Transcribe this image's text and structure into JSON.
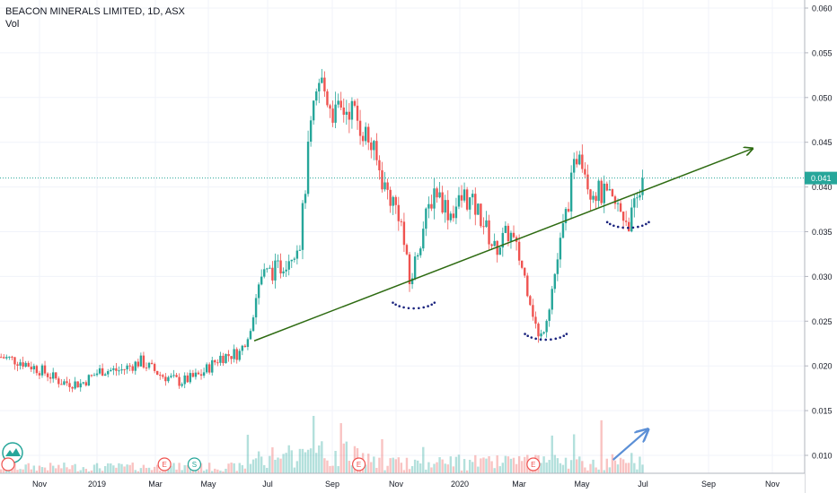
{
  "header": {
    "title": "BEACON MINERALS LIMITED, 1D, ASX",
    "volume_label": "Vol"
  },
  "price_tag": "0.041",
  "colors": {
    "up": "#26a69a",
    "down": "#ef5350",
    "trendline": "#2e6b12",
    "dots": "#1a237e",
    "arrow_volume": "#5b8fd6",
    "last_price_line": "#26a69a"
  },
  "chart_data": {
    "type": "candlestick",
    "title": "BEACON MINERALS LIMITED, 1D, ASX",
    "y_ticks": [
      "0.060",
      "0.055",
      "0.050",
      "0.045",
      "0.040",
      "0.035",
      "0.030",
      "0.025",
      "0.020",
      "0.015",
      "0.010"
    ],
    "ylim": [
      0.007,
      0.061
    ],
    "x_ticks": [
      "Nov",
      "2019",
      "Mar",
      "May",
      "Jul",
      "Sep",
      "Nov",
      "2020",
      "Mar",
      "May",
      "Jul",
      "Sep",
      "Nov"
    ],
    "last_price": 0.041,
    "grid": true,
    "price_path": [
      {
        "t": 0,
        "p": 0.021
      },
      {
        "t": 4,
        "p": 0.0205
      },
      {
        "t": 8,
        "p": 0.0195
      },
      {
        "t": 12,
        "p": 0.0182
      },
      {
        "t": 16,
        "p": 0.018
      },
      {
        "t": 20,
        "p": 0.0195
      },
      {
        "t": 24,
        "p": 0.0195
      },
      {
        "t": 28,
        "p": 0.0205
      },
      {
        "t": 32,
        "p": 0.019
      },
      {
        "t": 36,
        "p": 0.0182
      },
      {
        "t": 40,
        "p": 0.019
      },
      {
        "t": 44,
        "p": 0.021
      },
      {
        "t": 48,
        "p": 0.0215
      },
      {
        "t": 50,
        "p": 0.0245
      },
      {
        "t": 52,
        "p": 0.03
      },
      {
        "t": 56,
        "p": 0.031
      },
      {
        "t": 60,
        "p": 0.034
      },
      {
        "t": 62,
        "p": 0.046
      },
      {
        "t": 64,
        "p": 0.052
      },
      {
        "t": 67,
        "p": 0.048
      },
      {
        "t": 70,
        "p": 0.049
      },
      {
        "t": 74,
        "p": 0.045
      },
      {
        "t": 77,
        "p": 0.04
      },
      {
        "t": 80,
        "p": 0.037
      },
      {
        "t": 82,
        "p": 0.029
      },
      {
        "t": 84,
        "p": 0.034
      },
      {
        "t": 87,
        "p": 0.04
      },
      {
        "t": 90,
        "p": 0.037
      },
      {
        "t": 93,
        "p": 0.039
      },
      {
        "t": 96,
        "p": 0.037
      },
      {
        "t": 99,
        "p": 0.033
      },
      {
        "t": 102,
        "p": 0.035
      },
      {
        "t": 104,
        "p": 0.032
      },
      {
        "t": 106,
        "p": 0.028
      },
      {
        "t": 108,
        "p": 0.0225
      },
      {
        "t": 110,
        "p": 0.027
      },
      {
        "t": 113,
        "p": 0.036
      },
      {
        "t": 116,
        "p": 0.045
      },
      {
        "t": 118,
        "p": 0.04
      },
      {
        "t": 121,
        "p": 0.039
      },
      {
        "t": 124,
        "p": 0.0375
      },
      {
        "t": 126,
        "p": 0.036
      },
      {
        "t": 128,
        "p": 0.039
      },
      {
        "t": 129,
        "p": 0.042
      }
    ],
    "annotations": [
      {
        "type": "trendline",
        "from": {
          "t": 51,
          "p": 0.0228
        },
        "to": {
          "t": 151,
          "p": 0.0443
        }
      },
      {
        "type": "volume-arrow",
        "from": {
          "t": 123,
          "v": 0.0095
        },
        "to": {
          "t": 130,
          "v": 0.0129
        }
      },
      {
        "type": "dotted-arc",
        "t": 83,
        "p": 0.027
      },
      {
        "type": "dotted-arc",
        "t": 109.5,
        "p": 0.0235
      },
      {
        "type": "dotted-arc",
        "t": 126,
        "p": 0.036
      }
    ],
    "event_markers": [
      {
        "label": "E",
        "t": 33
      },
      {
        "label": "S",
        "t": 39
      },
      {
        "label": "E",
        "t": 72
      },
      {
        "label": "E",
        "t": 107
      }
    ]
  }
}
